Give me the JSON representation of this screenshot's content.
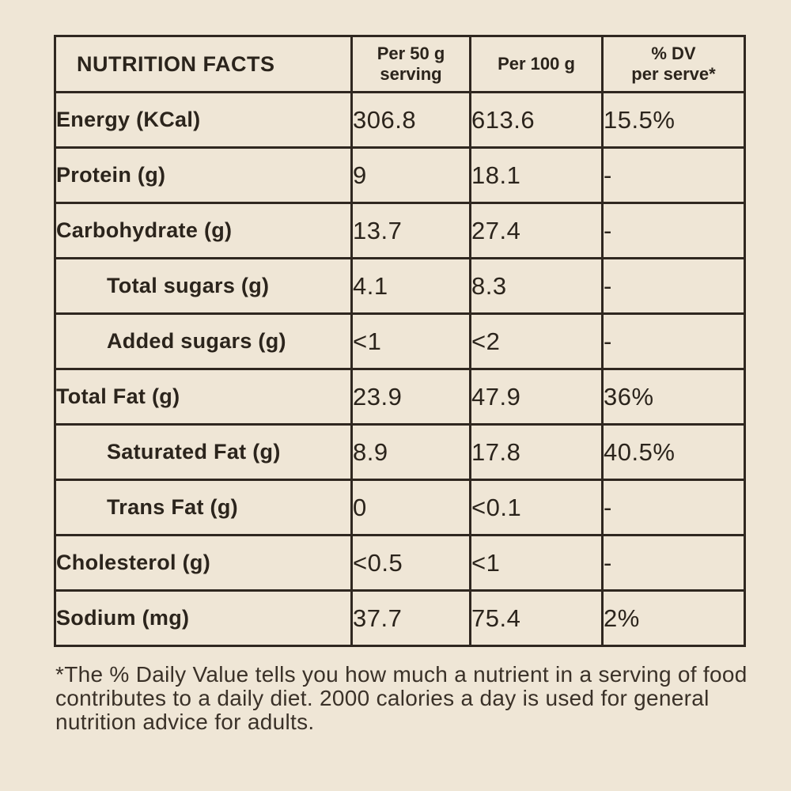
{
  "table": {
    "headers": {
      "title": "NUTRITION FACTS",
      "per_serving_line1": "Per 50 g",
      "per_serving_line2": "serving",
      "per_100g": "Per 100 g",
      "dv_line1": "% DV",
      "dv_line2": "per serve*"
    },
    "rows": [
      {
        "label": "Energy (KCal)",
        "per_serving": "306.8",
        "per_100g": "613.6",
        "dv": "15.5%"
      },
      {
        "label": "Protein (g)",
        "per_serving": "9",
        "per_100g": "18.1",
        "dv": "-"
      },
      {
        "label": "Carbohydrate (g)",
        "per_serving": "13.7",
        "per_100g": "27.4",
        "dv": "-"
      },
      {
        "label": "Total sugars (g)",
        "per_serving": "4.1",
        "per_100g": "8.3",
        "dv": "-"
      },
      {
        "label": "Added sugars (g)",
        "per_serving": "<1",
        "per_100g": "<2",
        "dv": "-"
      },
      {
        "label": "Total Fat (g)",
        "per_serving": "23.9",
        "per_100g": "47.9",
        "dv": "36%"
      },
      {
        "label": "Saturated Fat (g)",
        "per_serving": "8.9",
        "per_100g": "17.8",
        "dv": "40.5%"
      },
      {
        "label": "Trans Fat (g)",
        "per_serving": "0",
        "per_100g": "<0.1",
        "dv": "-"
      },
      {
        "label": "Cholesterol (g)",
        "per_serving": "<0.5",
        "per_100g": "<1",
        "dv": "-"
      },
      {
        "label": "Sodium (mg)",
        "per_serving": "37.7",
        "per_100g": "75.4",
        "dv": "2%"
      }
    ]
  },
  "footnote": "*The % Daily Value tells you how much a nutrient in a serving of food contributes to a daily diet. 2000 calories a day is used for general nutrition advice for adults.",
  "colors": {
    "background": "#efe6d6",
    "border": "#2f2720",
    "text": "#2b241c"
  }
}
